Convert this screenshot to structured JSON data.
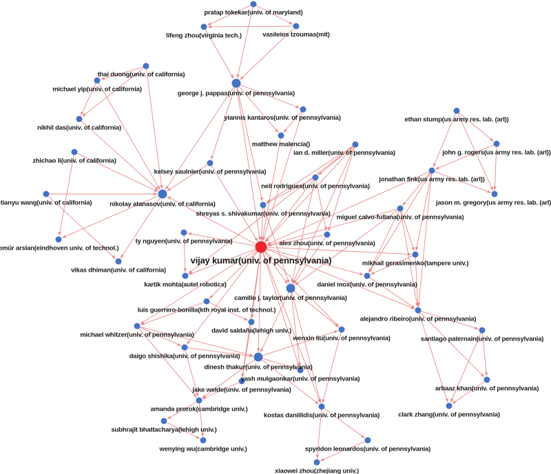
{
  "colors": {
    "node": "#4472c4",
    "hub_node": "#e8262b",
    "edge": "#e88a8a"
  },
  "nodes": [
    {
      "label": "pratap tokekar(univ. of maryland)",
      "size": "small"
    },
    {
      "label": "lifeng zhou(virginia tech.)",
      "size": "small"
    },
    {
      "label": "vasileios tzoumas(mit)",
      "size": "small"
    },
    {
      "label": "george j. pappas(univ. of pennsylvania)",
      "size": "medium"
    },
    {
      "label": "thai duong(univ. of california)",
      "size": "small"
    },
    {
      "label": "michael yip(univ. of california)",
      "size": "small"
    },
    {
      "label": "nikhil das(univ. of california)",
      "size": "small"
    },
    {
      "label": "zhichao li(univ. of california)",
      "size": "small"
    },
    {
      "label": "tianyu wang(univ. of california)",
      "size": "small"
    },
    {
      "label": "nikolay atanasov(univ. of california)",
      "size": "medium"
    },
    {
      "label": "kelsey saulnier(univ. of pennsylvania)",
      "size": "small"
    },
    {
      "label": "yiannis kantaros(univ. of pennsylvania)",
      "size": "small"
    },
    {
      "label": "matthew malencia()",
      "size": "small"
    },
    {
      "label": "ian d. miller(univ. of pennsylvania)",
      "size": "small"
    },
    {
      "label": "neil rodrigues(univ. of pennsylvania)",
      "size": "small"
    },
    {
      "label": "shreyas s. shivakumar(univ. of pennsylvania)",
      "size": "small"
    },
    {
      "label": "ethan stump(us army res. lab. (arl))",
      "size": "small"
    },
    {
      "label": "john g. rogers(us army res. lab. (arl))",
      "size": "small"
    },
    {
      "label": "jonathan fink(us army res. lab. (arl))",
      "size": "small"
    },
    {
      "label": "jason m. gregory(us army res. lab. (arl))",
      "size": "small"
    },
    {
      "label": "miguel calvo-fullana(univ. of pennsylvania)",
      "size": "small"
    },
    {
      "label": "alex zhou(univ. of pennsylvania)",
      "size": "small"
    },
    {
      "label": "vijay kumar(univ. of pennsylvania)",
      "size": "hub"
    },
    {
      "label": "ty nguyen(univ. of pennsylvania)",
      "size": "small"
    },
    {
      "label": "omür arslan(eindhoven univ. of technol.)",
      "size": "small"
    },
    {
      "label": "vikas dhiman(univ. of california)",
      "size": "small"
    },
    {
      "label": "kartik mohta(autel robotics)",
      "size": "small"
    },
    {
      "label": "mikhail gerasimenko(tampere univ.)",
      "size": "small"
    },
    {
      "label": "daniel mox(univ. of pennsylvania)",
      "size": "small"
    },
    {
      "label": "camillo j. taylor(univ. of pennsylvania)",
      "size": "medium"
    },
    {
      "label": "luis guerrero-bonilla(kth royal inst. of technol.)",
      "size": "small"
    },
    {
      "label": "alejandro ribeiro(univ. of pennsylvania)",
      "size": "small"
    },
    {
      "label": "david saldaña(lehigh univ.)",
      "size": "small"
    },
    {
      "label": "michael whitzer(univ. of pennsylvania)",
      "size": "small"
    },
    {
      "label": "wenxin liu(univ. of pennsylvania)",
      "size": "small"
    },
    {
      "label": "santiago paternain(univ. of pennsylvania)",
      "size": "small"
    },
    {
      "label": "daigo shishika(univ. of pennsylvania)",
      "size": "small"
    },
    {
      "label": "dinesh thakur(univ. of pennsylvania)",
      "size": "medium"
    },
    {
      "label": "yash mulgaonkar(univ. of pennsylvania)",
      "size": "small"
    },
    {
      "label": "jake welde(univ. of pennsylvania)",
      "size": "small"
    },
    {
      "label": "arbaaz khan(univ. of pennsylvania)",
      "size": "small"
    },
    {
      "label": "amanda prorok(cambridge univ.)",
      "size": "small"
    },
    {
      "label": "kostas daniilidis(univ. of pennsylvania)",
      "size": "small"
    },
    {
      "label": "clark zhang(univ. of pennsylvania)",
      "size": "small"
    },
    {
      "label": "subhrajit bhattacharya(lehigh univ.)",
      "size": "small"
    },
    {
      "label": "wenying wu(cambridge univ.)",
      "size": "small"
    },
    {
      "label": "spyridon leonardos(univ. of pennsylvania)",
      "size": "small"
    },
    {
      "label": "xiaowei zhou(zhejiang univ.)",
      "size": "small"
    }
  ],
  "edges": [
    [
      0,
      1
    ],
    [
      0,
      2
    ],
    [
      2,
      1
    ],
    [
      0,
      3
    ],
    [
      1,
      3
    ],
    [
      2,
      3
    ],
    [
      3,
      10
    ],
    [
      3,
      9
    ],
    [
      3,
      11
    ],
    [
      3,
      12
    ],
    [
      3,
      22
    ],
    [
      3,
      15
    ],
    [
      11,
      12
    ],
    [
      11,
      22
    ],
    [
      4,
      5
    ],
    [
      4,
      6
    ],
    [
      4,
      9
    ],
    [
      5,
      6
    ],
    [
      5,
      9
    ],
    [
      6,
      9
    ],
    [
      7,
      9
    ],
    [
      7,
      24
    ],
    [
      8,
      9
    ],
    [
      8,
      25
    ],
    [
      9,
      24
    ],
    [
      9,
      25
    ],
    [
      22,
      9
    ],
    [
      10,
      9
    ],
    [
      10,
      22
    ],
    [
      12,
      22
    ],
    [
      13,
      22
    ],
    [
      13,
      14
    ],
    [
      13,
      21
    ],
    [
      13,
      29
    ],
    [
      13,
      15
    ],
    [
      13,
      26
    ],
    [
      14,
      22
    ],
    [
      14,
      21
    ],
    [
      14,
      29
    ],
    [
      14,
      15
    ],
    [
      15,
      22
    ],
    [
      15,
      29
    ],
    [
      16,
      17
    ],
    [
      16,
      18
    ],
    [
      16,
      19
    ],
    [
      17,
      18
    ],
    [
      17,
      19
    ],
    [
      18,
      19
    ],
    [
      18,
      22
    ],
    [
      18,
      20
    ],
    [
      18,
      27
    ],
    [
      18,
      31
    ],
    [
      18,
      28
    ],
    [
      20,
      22
    ],
    [
      20,
      27
    ],
    [
      20,
      28
    ],
    [
      20,
      31
    ],
    [
      20,
      29
    ],
    [
      21,
      22
    ],
    [
      21,
      29
    ],
    [
      22,
      23
    ],
    [
      22,
      26
    ],
    [
      22,
      29
    ],
    [
      22,
      30
    ],
    [
      22,
      33
    ],
    [
      22,
      36
    ],
    [
      22,
      32
    ],
    [
      22,
      37
    ],
    [
      22,
      34
    ],
    [
      22,
      38
    ],
    [
      22,
      39
    ],
    [
      22,
      42
    ],
    [
      22,
      27
    ],
    [
      22,
      28
    ],
    [
      22,
      31
    ],
    [
      23,
      26
    ],
    [
      27,
      28
    ],
    [
      27,
      31
    ],
    [
      28,
      31
    ],
    [
      31,
      35
    ],
    [
      31,
      40
    ],
    [
      31,
      43
    ],
    [
      35,
      40
    ],
    [
      35,
      43
    ],
    [
      40,
      43
    ],
    [
      29,
      34
    ],
    [
      29,
      37
    ],
    [
      29,
      42
    ],
    [
      29,
      38
    ],
    [
      30,
      32
    ],
    [
      30,
      33
    ],
    [
      33,
      36
    ],
    [
      33,
      37
    ],
    [
      33,
      41
    ],
    [
      36,
      37
    ],
    [
      36,
      41
    ],
    [
      32,
      39
    ],
    [
      37,
      34
    ],
    [
      37,
      38
    ],
    [
      37,
      42
    ],
    [
      37,
      41
    ],
    [
      34,
      42
    ],
    [
      42,
      46
    ],
    [
      42,
      47
    ],
    [
      46,
      47
    ],
    [
      41,
      44
    ],
    [
      41,
      45
    ],
    [
      44,
      45
    ],
    [
      39,
      41
    ]
  ]
}
